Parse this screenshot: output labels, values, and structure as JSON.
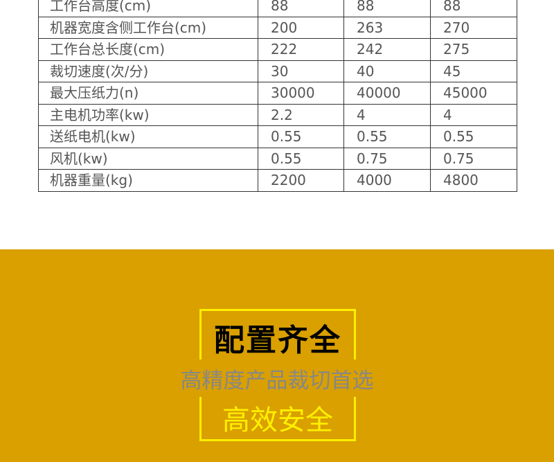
{
  "colors": {
    "band": "#D9A000",
    "frame": "#FFF000",
    "subtitle": "#878787"
  },
  "spec_table": {
    "rows": [
      [
        "工作台高度(cm)",
        "88",
        "88",
        "88"
      ],
      [
        "机器宽度含侧工作台(cm)",
        "200",
        "263",
        "270"
      ],
      [
        "工作台总长度(cm)",
        "222",
        "242",
        "275"
      ],
      [
        "裁切速度(次/分)",
        "30",
        "40",
        "45"
      ],
      [
        "最大压纸力(n)",
        "30000",
        "40000",
        "45000"
      ],
      [
        "主电机功率(kw)",
        "2.2",
        "4",
        "4"
      ],
      [
        "送纸电机(kw)",
        "0.55",
        "0.55",
        "0.55"
      ],
      [
        "风机(kw)",
        "0.55",
        "0.75",
        "0.75"
      ],
      [
        "机器重量(kg)",
        "2200",
        "4000",
        "4800"
      ]
    ]
  },
  "feature": {
    "title": "配置齐全",
    "subtitle": "高精度产品裁切首选",
    "tagline": "高效安全"
  }
}
